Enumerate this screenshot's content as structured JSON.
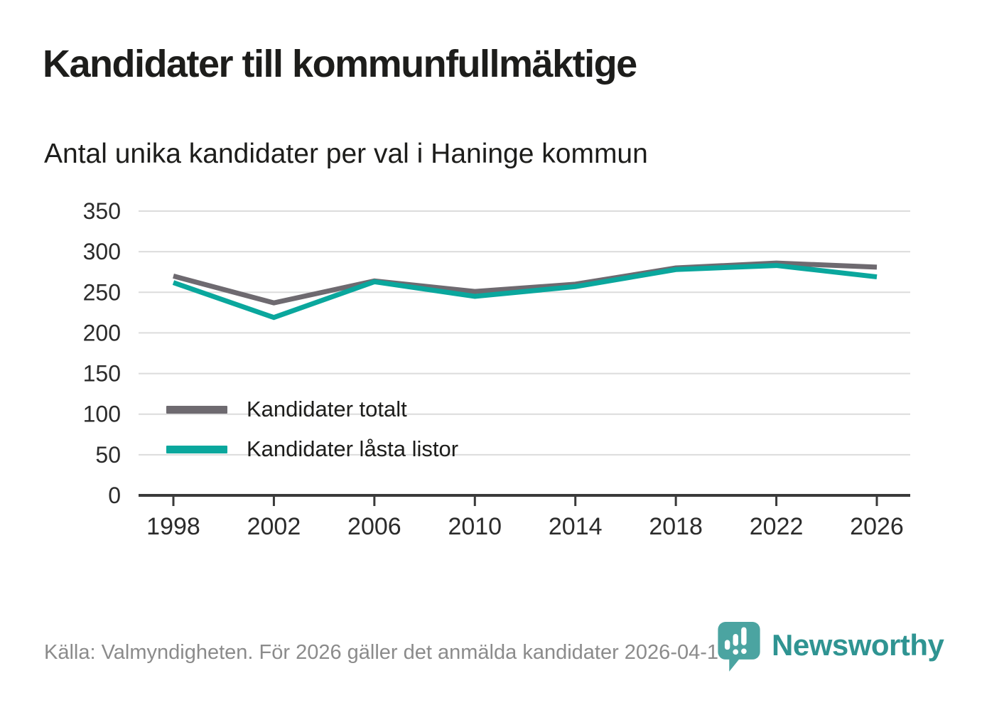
{
  "title": "Kandidater till kommunfullmäktige",
  "subtitle": "Antal unika kandidater per val i Haninge kommun",
  "source": "Källa: Valmyndigheten. För 2026 gäller det anmälda kandidater 2026-04-10.",
  "logo": {
    "brand": "Newsworthy",
    "icon": "newsworthy-pin-barchart-icon",
    "brand_color": "#2f9492",
    "icon_color": "#4ba4a1"
  },
  "colors": {
    "grid": "#dcdcdc",
    "axis": "#3a3a3a",
    "tick_text": "#2b2b2b",
    "title_text": "#1d1d1b",
    "source_text": "#8b8b8b",
    "background": "#ffffff"
  },
  "chart_data": {
    "type": "line",
    "x": [
      1998,
      2002,
      2006,
      2010,
      2014,
      2018,
      2022,
      2026
    ],
    "series": [
      {
        "name": "Kandidater totalt",
        "color": "#6e6a70",
        "values": [
          270,
          237,
          264,
          251,
          260,
          280,
          286,
          281
        ]
      },
      {
        "name": "Kandidater låsta listor",
        "color": "#0aa79d",
        "values": [
          262,
          219,
          263,
          245,
          257,
          278,
          283,
          269
        ]
      }
    ],
    "title": "Kandidater till kommunfullmäktige",
    "subtitle": "Antal unika kandidater per val i Haninge kommun",
    "xlabel": "",
    "ylabel": "",
    "ylim": [
      0,
      350
    ],
    "yticks": [
      0,
      50,
      100,
      150,
      200,
      250,
      300,
      350
    ],
    "grid": true,
    "legend_position": "inside-left",
    "line_width": 7
  }
}
